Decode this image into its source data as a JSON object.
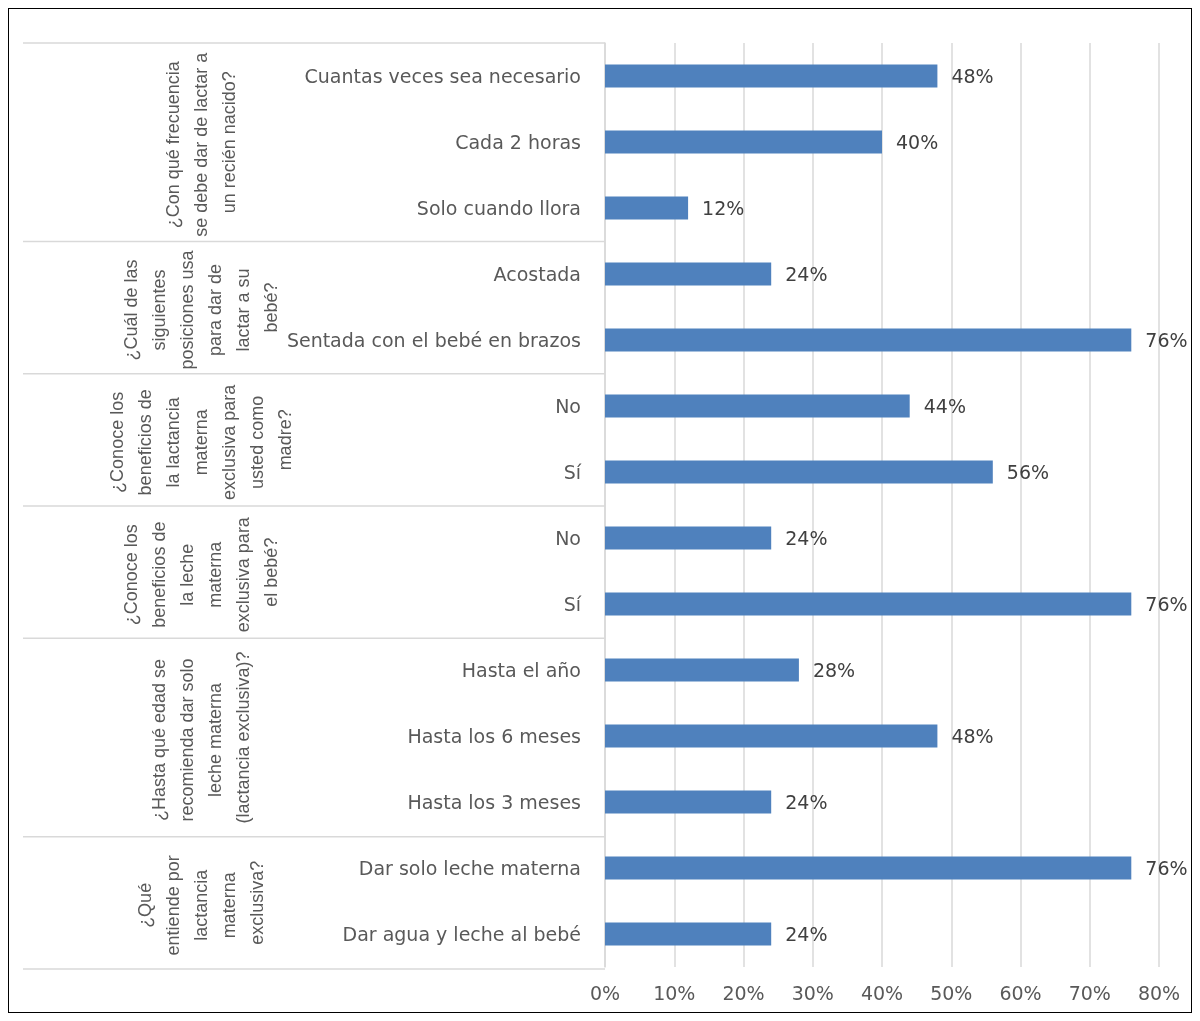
{
  "chart_data": {
    "type": "bar",
    "orientation": "horizontal",
    "categories": [
      "Cuantas veces sea necesario",
      "Cada 2 horas",
      "Solo cuando llora",
      "Acostada",
      "Sentada con el bebé en brazos",
      "No",
      "Sí",
      "No",
      "Sí",
      "Hasta el año",
      "Hasta los 6 meses",
      "Hasta los 3 meses",
      "Dar solo leche materna",
      "Dar agua y leche al bebé"
    ],
    "values": [
      48,
      40,
      12,
      24,
      76,
      44,
      56,
      24,
      76,
      28,
      48,
      24,
      76,
      24
    ],
    "value_labels": [
      "48%",
      "40%",
      "12%",
      "24%",
      "76%",
      "44%",
      "56%",
      "24%",
      "76%",
      "28%",
      "48%",
      "24%",
      "76%",
      "24%"
    ],
    "color": "#4f81bd",
    "xlim": [
      0,
      80
    ],
    "xticks": [
      {
        "value": 0,
        "label": "0%"
      },
      {
        "value": 10,
        "label": "10%"
      },
      {
        "value": 20,
        "label": "20%"
      },
      {
        "value": 30,
        "label": "30%"
      },
      {
        "value": 40,
        "label": "40%"
      },
      {
        "value": 50,
        "label": "50%"
      },
      {
        "value": 60,
        "label": "60%"
      },
      {
        "value": 70,
        "label": "70%"
      },
      {
        "value": 80,
        "label": "80%"
      }
    ],
    "grid": "x",
    "annotations": [
      "¿Con qué frecuencia se debe dar de lactar a un recién nacido?",
      "¿Cuál de las siguientes posiciones usa para dar de lactar a su bebé?",
      "¿Conoce los beneficios de la lactancia materna exclusiva para usted como madre?",
      "¿Conoce los beneficios de la leche materna exclusiva para el bebé?",
      "¿Hasta qué edad se recomienda dar solo leche materna (lactancia exclusiva)?",
      "¿Qué entiende por lactancia materna exclusiva?"
    ]
  }
}
